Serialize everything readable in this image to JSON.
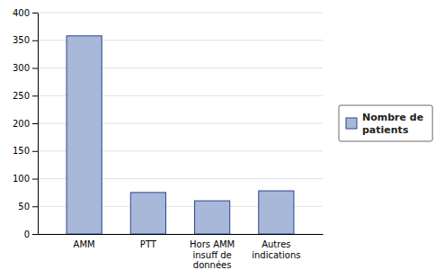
{
  "chart_data": {
    "type": "bar",
    "categories": [
      "AMM",
      "PTT",
      "Hors AMM\ninsuff de\ndonnées",
      "Autres\nindications"
    ],
    "series": [
      {
        "name": "Nombre de\npatients",
        "color": "#A8B8D8",
        "values": [
          358,
          75,
          60,
          78
        ]
      }
    ],
    "ylim": [
      0,
      400
    ],
    "yticks": [
      0,
      50,
      100,
      150,
      200,
      250,
      300,
      350,
      400
    ],
    "grid": true,
    "legend": "right"
  }
}
